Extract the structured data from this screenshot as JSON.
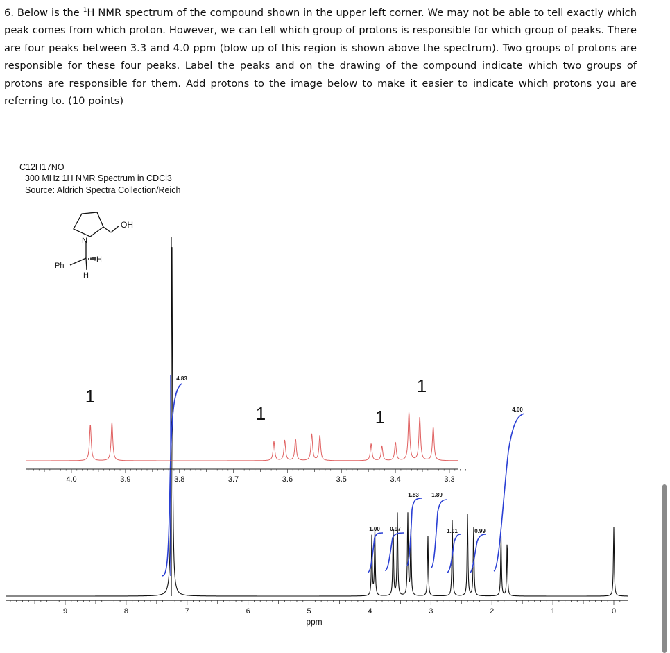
{
  "question": {
    "prefix": "6. Below is the ",
    "superscript": "1",
    "body": "H NMR spectrum of the compound shown in the upper left corner. We may not be able to tell exactly which peak comes from which proton. However, we can tell which group of protons is responsible for which group of peaks. There are four peaks between 3.3 and 4.0 ppm (blow up of this region is shown above the spectrum). Two groups of protons are responsible for these four peaks. Label the peaks and on the drawing of the compound indicate which two groups of protons are responsible for them. Add protons to the image below to make it easier to indicate which protons you are referring to. (10 points)"
  },
  "spectrum_header": {
    "formula": "C12H17NO",
    "title": "300 MHz 1H NMR Spectrum in CDCl3",
    "source": "Source: Aldrich Spectra Collection/Reich"
  },
  "structure_labels": {
    "oh": "OH",
    "n": "N",
    "h_wedge": "H",
    "h_down": "H",
    "ph": "Ph"
  },
  "colors": {
    "spectrum": "#000000",
    "integral": "#2a3fd4",
    "expansion": "#e06060",
    "handwriting": "#000000"
  },
  "chart_data": [
    {
      "type": "line",
      "name_role": "main spectrum",
      "xlabel": "ppm",
      "xlim": [
        9.9,
        -0.1
      ],
      "reversed_x": true,
      "tick_labels": [
        "9",
        "8",
        "7",
        "6",
        "5",
        "4",
        "3",
        "2",
        "1",
        "0"
      ],
      "peaks_ppm": [
        {
          "ppm": 7.25,
          "height": 1.0
        },
        {
          "ppm": 3.97,
          "height": 0.22
        },
        {
          "ppm": 3.92,
          "height": 0.24
        },
        {
          "ppm": 3.62,
          "height": 0.25
        },
        {
          "ppm": 3.55,
          "height": 0.3
        },
        {
          "ppm": 3.38,
          "height": 0.3
        },
        {
          "ppm": 3.33,
          "height": 0.25
        },
        {
          "ppm": 3.05,
          "height": 0.22
        },
        {
          "ppm": 2.65,
          "height": 0.28
        },
        {
          "ppm": 2.4,
          "height": 0.3
        },
        {
          "ppm": 2.3,
          "height": 0.26
        },
        {
          "ppm": 1.85,
          "height": 0.22
        },
        {
          "ppm": 1.75,
          "height": 0.2
        },
        {
          "ppm": 0.0,
          "height": 0.27
        }
      ],
      "integral_labels": [
        {
          "ppm": 3.98,
          "label": "1.00"
        },
        {
          "ppm": 3.72,
          "label": "0.97"
        },
        {
          "ppm": 3.55,
          "label": "1.83"
        },
        {
          "ppm": 3.3,
          "label": "1.89"
        },
        {
          "ppm": 2.7,
          "label": "1.01"
        },
        {
          "ppm": 2.15,
          "label": "0.99"
        },
        {
          "ppm": 7.5,
          "label": "4.83"
        },
        {
          "ppm": 1.6,
          "label": "4.00"
        }
      ]
    },
    {
      "type": "line",
      "name_role": "expansion 3.3-4.0 ppm",
      "xlim": [
        4.07,
        3.27
      ],
      "reversed_x": true,
      "tick_labels": [
        "4.0",
        "3.9",
        "3.8",
        "3.7",
        "3.6",
        "3.5",
        "3.4",
        "3.3"
      ],
      "peaks_ppm": [
        {
          "ppm": 3.965,
          "height": 0.75
        },
        {
          "ppm": 3.925,
          "height": 0.8
        },
        {
          "ppm": 3.625,
          "height": 0.4
        },
        {
          "ppm": 3.605,
          "height": 0.42
        },
        {
          "ppm": 3.585,
          "height": 0.45
        },
        {
          "ppm": 3.555,
          "height": 0.55
        },
        {
          "ppm": 3.54,
          "height": 0.52
        },
        {
          "ppm": 3.445,
          "height": 0.35
        },
        {
          "ppm": 3.425,
          "height": 0.3
        },
        {
          "ppm": 3.4,
          "height": 0.38
        },
        {
          "ppm": 3.375,
          "height": 1.0
        },
        {
          "ppm": 3.355,
          "height": 0.9
        },
        {
          "ppm": 3.33,
          "height": 0.7
        }
      ],
      "handwritten_labels": [
        "1",
        "1",
        "1",
        "1"
      ]
    }
  ]
}
